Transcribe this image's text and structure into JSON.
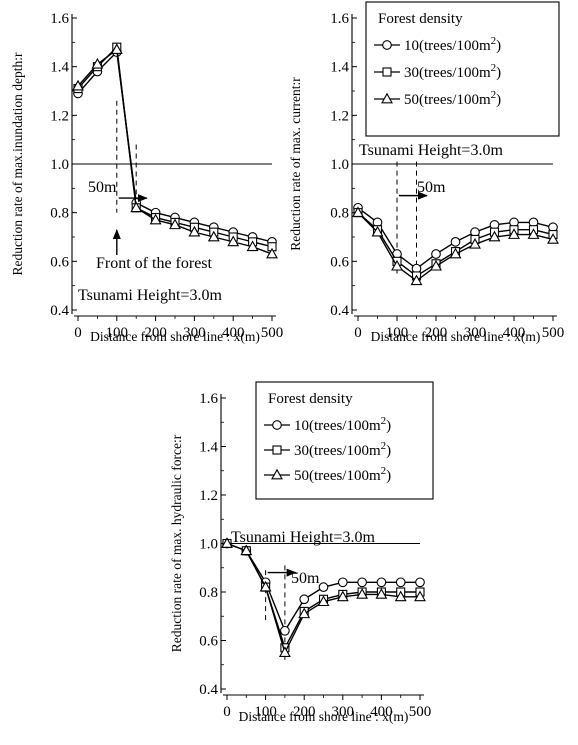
{
  "chart_data": [
    {
      "type": "line",
      "xlabel": "Distance from shore line : x(m)",
      "ylabel": "Reduction rate of max.inundation depth:r",
      "xlim": [
        0,
        500
      ],
      "ylim": [
        0.4,
        1.6
      ],
      "xticks": [
        "0",
        "100",
        "200",
        "300",
        "400",
        "500"
      ],
      "yticks": [
        "0.4",
        "0.6",
        "0.8",
        "1.0",
        "1.2",
        "1.4",
        "1.6"
      ],
      "x": [
        0,
        50,
        100,
        150,
        200,
        250,
        300,
        350,
        400,
        450,
        500
      ],
      "series": [
        {
          "name": "10(trees/100m2)",
          "marker": "circle",
          "values": [
            1.29,
            1.38,
            1.46,
            0.84,
            0.8,
            0.78,
            0.76,
            0.74,
            0.72,
            0.7,
            0.68
          ]
        },
        {
          "name": "30(trees/100m2)",
          "marker": "square",
          "values": [
            1.31,
            1.4,
            1.48,
            0.82,
            0.78,
            0.76,
            0.74,
            0.72,
            0.7,
            0.68,
            0.66
          ]
        },
        {
          "name": "50(trees/100m2)",
          "marker": "triangle",
          "values": [
            1.32,
            1.41,
            1.47,
            0.82,
            0.77,
            0.75,
            0.72,
            0.7,
            0.68,
            0.66,
            0.63
          ]
        }
      ],
      "reference_line": 1.0,
      "annotations": {
        "distance": "50m",
        "front": "Front of the forest",
        "tsunami": "Tsunami Height=3.0m"
      },
      "dashed_x": [
        100,
        150
      ]
    },
    {
      "type": "line",
      "xlabel": "Distance from shore line : x(m)",
      "ylabel": "Reduction rate of max. current:r",
      "xlim": [
        0,
        500
      ],
      "ylim": [
        0.4,
        1.6
      ],
      "xticks": [
        "0",
        "100",
        "200",
        "300",
        "400",
        "500"
      ],
      "yticks": [
        "0.4",
        "0.6",
        "0.8",
        "1.0",
        "1.2",
        "1.4",
        "1.6"
      ],
      "x": [
        0,
        50,
        100,
        150,
        200,
        250,
        300,
        350,
        400,
        450,
        500
      ],
      "series": [
        {
          "name": "10(trees/100m2)",
          "marker": "circle",
          "values": [
            0.82,
            0.76,
            0.63,
            0.57,
            0.63,
            0.68,
            0.72,
            0.75,
            0.76,
            0.76,
            0.74
          ]
        },
        {
          "name": "30(trees/100m2)",
          "marker": "square",
          "values": [
            0.8,
            0.73,
            0.6,
            0.54,
            0.59,
            0.64,
            0.69,
            0.72,
            0.73,
            0.73,
            0.71
          ]
        },
        {
          "name": "50(trees/100m2)",
          "marker": "triangle",
          "values": [
            0.8,
            0.72,
            0.58,
            0.52,
            0.58,
            0.63,
            0.67,
            0.7,
            0.71,
            0.71,
            0.69
          ]
        }
      ],
      "reference_line": 1.0,
      "legend": {
        "title": "Forest density",
        "placement": "top-right"
      },
      "annotations": {
        "distance": "50m",
        "tsunami": "Tsunami Height=3.0m"
      },
      "dashed_x": [
        100,
        150
      ]
    },
    {
      "type": "line",
      "xlabel": "Distance from shore line : x(m)",
      "ylabel": "Reduction rate of max. hydraulic force:r",
      "xlim": [
        0,
        500
      ],
      "ylim": [
        0.4,
        1.6
      ],
      "xticks": [
        "0",
        "100",
        "200",
        "300",
        "400",
        "500"
      ],
      "yticks": [
        "0.4",
        "0.6",
        "0.8",
        "1.0",
        "1.2",
        "1.4",
        "1.6"
      ],
      "x": [
        0,
        50,
        100,
        150,
        200,
        250,
        300,
        350,
        400,
        450,
        500
      ],
      "series": [
        {
          "name": "10(trees/100m2)",
          "marker": "circle",
          "values": [
            1.0,
            0.97,
            0.84,
            0.64,
            0.77,
            0.82,
            0.84,
            0.84,
            0.84,
            0.84,
            0.84
          ]
        },
        {
          "name": "30(trees/100m2)",
          "marker": "square",
          "values": [
            1.0,
            0.97,
            0.82,
            0.57,
            0.72,
            0.77,
            0.79,
            0.8,
            0.8,
            0.8,
            0.8
          ]
        },
        {
          "name": "50(trees/100m2)",
          "marker": "triangle",
          "values": [
            1.0,
            0.97,
            0.82,
            0.55,
            0.71,
            0.76,
            0.78,
            0.79,
            0.79,
            0.78,
            0.78
          ]
        }
      ],
      "reference_line": 1.0,
      "legend": {
        "title": "Forest density",
        "placement": "top-right"
      },
      "annotations": {
        "distance": "50m",
        "tsunami": "Tsunami Height=3.0m"
      },
      "dashed_x": [
        100,
        150
      ]
    }
  ]
}
